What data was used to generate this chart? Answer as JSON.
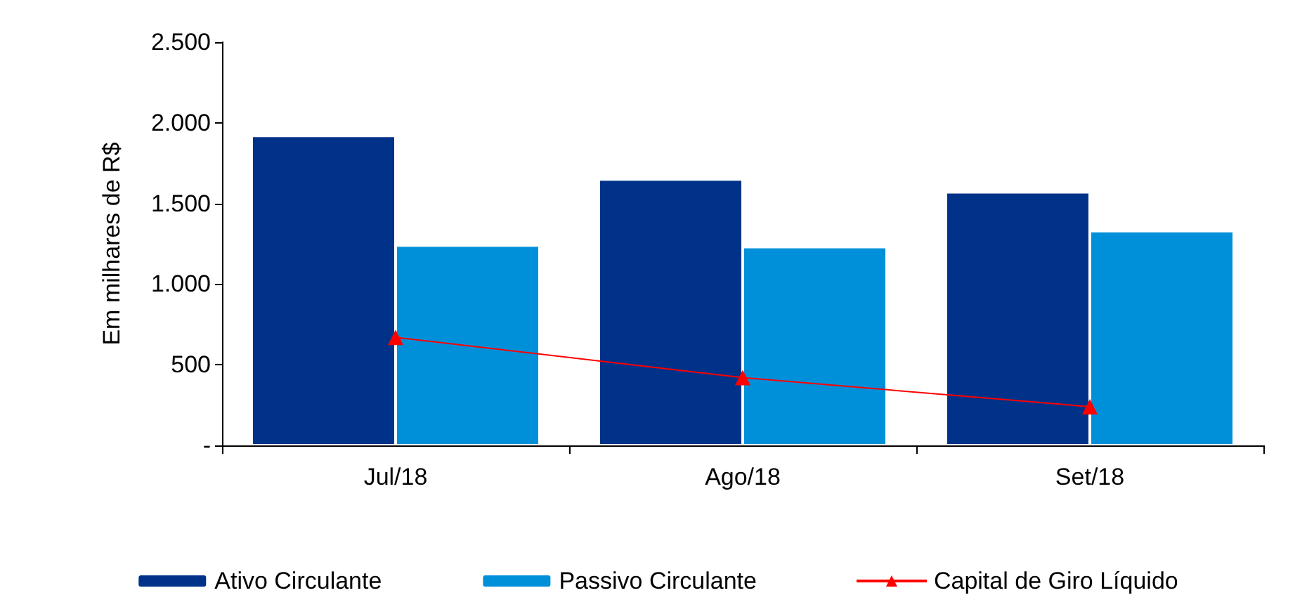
{
  "chart_data": {
    "type": "bar",
    "ylabel": "Em milhares de R$",
    "categories": [
      "Jul/18",
      "Ago/18",
      "Set/18"
    ],
    "series": [
      {
        "name": "Ativo Circulante",
        "color": "#003289",
        "values": [
          1920,
          1650,
          1570
        ]
      },
      {
        "name": "Passivo Circulante",
        "color": "#0090da",
        "values": [
          1240,
          1230,
          1330
        ]
      },
      {
        "name": "Capital de Giro Líquido",
        "type": "line",
        "color": "#ff0000",
        "marker": "triangle",
        "values": [
          670,
          420,
          240
        ]
      }
    ],
    "ylim": [
      0,
      2500
    ],
    "yticks": [
      {
        "value": 0,
        "label": "-"
      },
      {
        "value": 500,
        "label": "500"
      },
      {
        "value": 1000,
        "label": "1.000"
      },
      {
        "value": 1500,
        "label": "1.500"
      },
      {
        "value": 2000,
        "label": "2.000"
      },
      {
        "value": 2500,
        "label": "2.500"
      }
    ],
    "grid": false,
    "legend": "bottom"
  }
}
